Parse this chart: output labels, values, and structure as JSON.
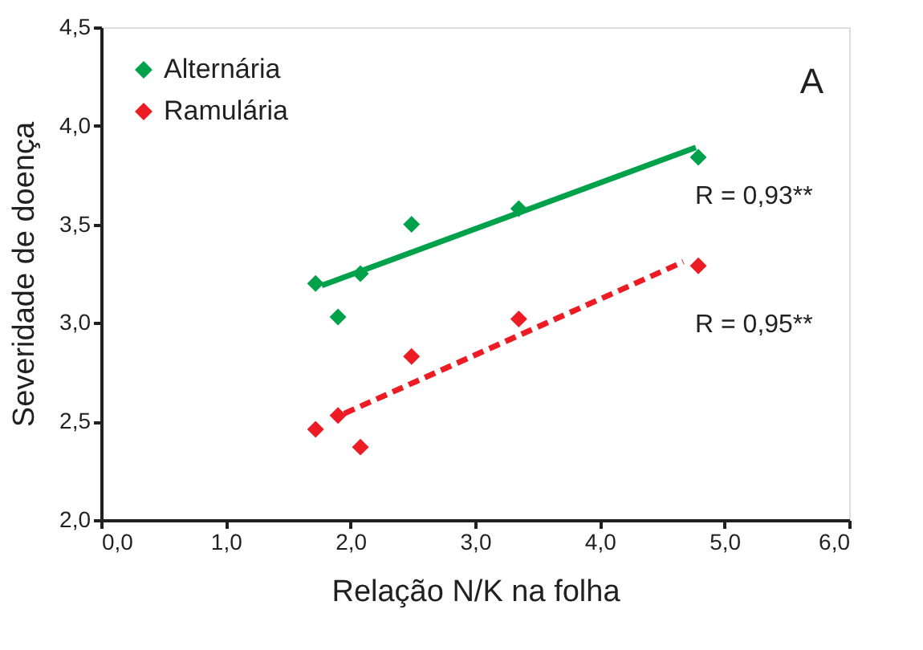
{
  "chart_data": {
    "type": "scatter",
    "xlabel": "Relação N/K na folha",
    "ylabel": "Severidade de doença",
    "xlim": [
      0,
      6
    ],
    "xticks": [
      {
        "value": 0,
        "label": "0,0"
      },
      {
        "value": 1,
        "label": "1,0"
      },
      {
        "value": 2,
        "label": "2,0"
      },
      {
        "value": 3,
        "label": "3,0"
      },
      {
        "value": 4,
        "label": "4,0"
      },
      {
        "value": 5,
        "label": "5,0"
      },
      {
        "value": 6,
        "label": "6,0"
      }
    ],
    "ylim": [
      2,
      4.5
    ],
    "yticks": [
      {
        "value": 2,
        "label": "2,0"
      },
      {
        "value": 2.5,
        "label": "2,5"
      },
      {
        "value": 3,
        "label": "3,0"
      },
      {
        "value": 3.5,
        "label": "3,5"
      },
      {
        "value": 4,
        "label": "4,0"
      },
      {
        "value": 4.5,
        "label": "4,5"
      }
    ],
    "marker": "diamond",
    "legend": "top left",
    "grid": false,
    "series": [
      {
        "name": "Alternária",
        "color": "#00a14b",
        "x": [
          1.72,
          1.9,
          2.08,
          2.49,
          3.35,
          4.79
        ],
        "values": [
          3.2,
          3.03,
          3.25,
          3.5,
          3.58,
          3.84
        ]
      },
      {
        "name": "Ramulária",
        "color": "#ed1c24",
        "x": [
          1.72,
          1.9,
          2.08,
          2.49,
          3.35,
          4.79
        ],
        "values": [
          2.46,
          2.53,
          2.37,
          2.83,
          3.02,
          3.29
        ]
      },
      {
        "type": "line",
        "color": "#00a14b",
        "line_style": "solid",
        "marker": "none",
        "x": [
          1.77,
          4.77
        ],
        "values": [
          3.19,
          3.89
        ]
      },
      {
        "type": "line",
        "color": "#ed1c24",
        "line_style": "dashed",
        "marker": "none",
        "x": [
          1.95,
          4.67
        ],
        "values": [
          2.54,
          3.31
        ]
      }
    ],
    "annotations": [
      "A",
      "R = 0,93**",
      "R = 0,95**"
    ]
  }
}
